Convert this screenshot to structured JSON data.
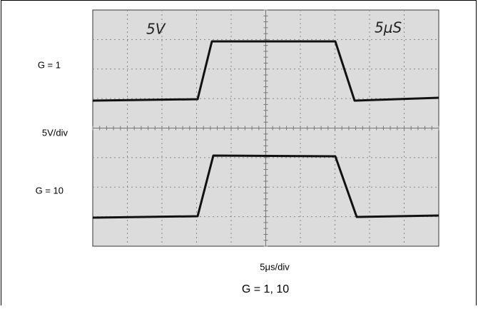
{
  "screen": {
    "volts_note": "5V",
    "time_note": "5μS"
  },
  "labels": {
    "trace_1": "G = 1",
    "vertical_scale": "5V/div",
    "trace_2": "G = 10",
    "horizontal_scale": "5μs/div",
    "caption": "G = 1, 10"
  }
}
